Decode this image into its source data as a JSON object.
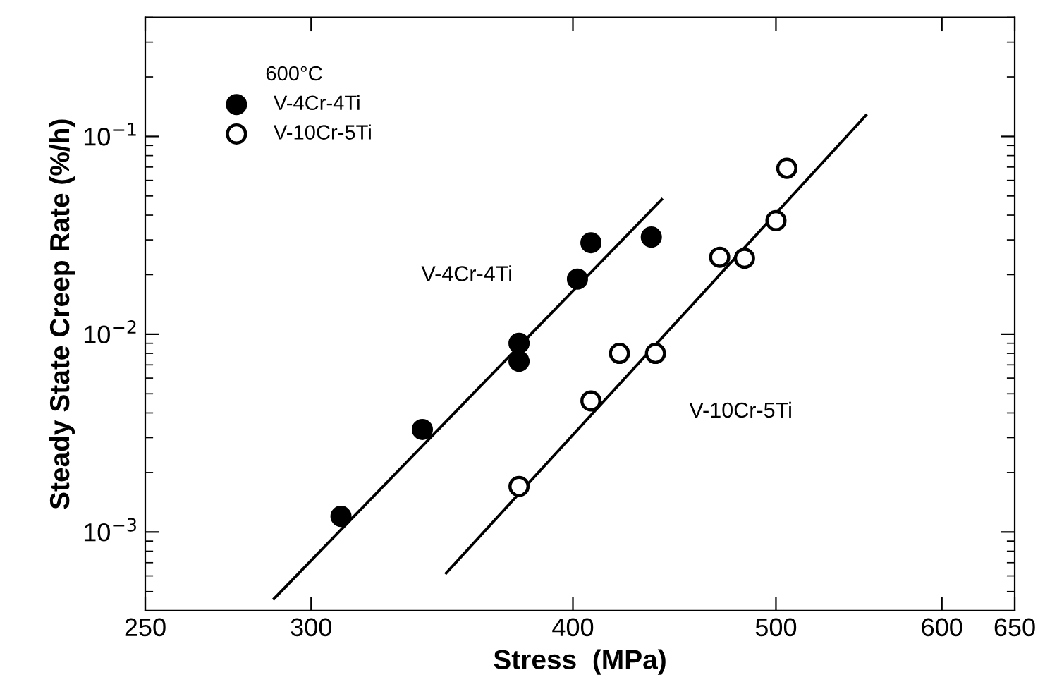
{
  "chart_data": {
    "type": "scatter",
    "xlabel": "Stress  (MPa)",
    "ylabel": "Steady State Creep Rate (%/h)",
    "legend_title": "600°C",
    "log": "xy",
    "xlim": [
      250,
      650
    ],
    "ylim": [
      0.0004,
      0.4
    ],
    "xticks": [
      250,
      300,
      400,
      500,
      600,
      650
    ],
    "yticks": [
      {
        "value": 0.001,
        "label": "10$^{−3}$"
      },
      {
        "value": 0.01,
        "label": "10$^{−2}$"
      },
      {
        "value": 0.1,
        "label": "10$^{−1}$"
      }
    ],
    "legend": "top left",
    "grid": false,
    "series": [
      {
        "name": "V-4Cr-4Ti",
        "marker": "circle",
        "color": "#000000",
        "x": [
          310,
          339,
          377,
          377,
          402,
          408,
          436
        ],
        "values": [
          0.0012,
          0.0033,
          0.009,
          0.0073,
          0.019,
          0.029,
          0.031
        ]
      },
      {
        "name": "V-10Cr-5Ti",
        "marker": "circle",
        "color": "#ffffff",
        "x": [
          377,
          408,
          421,
          438,
          470,
          483,
          500,
          506
        ],
        "values": [
          0.0017,
          0.0046,
          0.008,
          0.008,
          0.0245,
          0.0242,
          0.0375,
          0.069
        ]
      },
      {
        "type": "line",
        "marker": "none",
        "color": "#000000",
        "x": [
          288,
          441
        ],
        "values": [
          0.00046,
          0.048
        ]
      },
      {
        "type": "line",
        "marker": "none",
        "color": "#000000",
        "x": [
          348,
          552
        ],
        "values": [
          0.00062,
          0.128
        ]
      }
    ],
    "annotations": [
      "V-4Cr-4Ti",
      "V-10Cr-5Ti"
    ]
  }
}
